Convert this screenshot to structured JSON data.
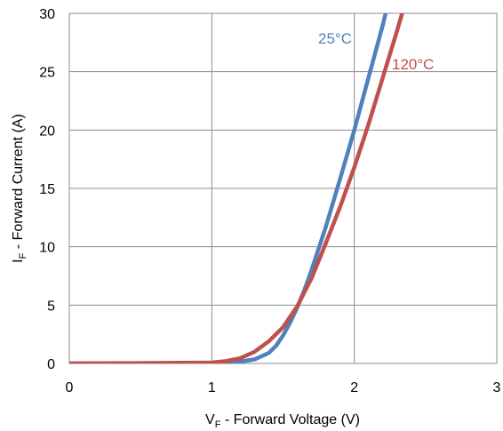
{
  "chart_data": {
    "type": "line",
    "title": "",
    "xlabel": {
      "main": "V",
      "sub": "F",
      "rest": " - Forward Voltage (V)"
    },
    "ylabel": {
      "main": "I",
      "sub": "F",
      "rest": " - Forward Current (A)"
    },
    "xlim": [
      0,
      3
    ],
    "ylim": [
      0,
      30
    ],
    "xticks": [
      "0",
      "1",
      "2",
      "3"
    ],
    "yticks": [
      "0",
      "5",
      "10",
      "15",
      "20",
      "25",
      "30"
    ],
    "grid": true,
    "series": [
      {
        "name": "25°C",
        "color": "#4f81bd",
        "x": [
          0,
          0.5,
          1.0,
          1.2,
          1.3,
          1.4,
          1.45,
          1.5,
          1.55,
          1.6,
          1.65,
          1.7,
          1.8,
          1.9,
          2.0,
          2.1,
          2.2,
          2.24
        ],
        "y": [
          0,
          0.02,
          0.05,
          0.15,
          0.35,
          0.9,
          1.5,
          2.4,
          3.5,
          4.8,
          6.3,
          8.0,
          11.7,
          15.8,
          20.0,
          24.5,
          29.0,
          31.0
        ]
      },
      {
        "name": "120°C",
        "color": "#c0504d",
        "x": [
          0,
          0.5,
          1.0,
          1.1,
          1.2,
          1.3,
          1.4,
          1.5,
          1.6,
          1.7,
          1.8,
          1.9,
          2.0,
          2.1,
          2.2,
          2.3,
          2.35
        ],
        "y": [
          0,
          0.03,
          0.08,
          0.2,
          0.45,
          1.0,
          1.9,
          3.1,
          4.9,
          7.3,
          10.3,
          13.4,
          16.8,
          20.5,
          24.5,
          28.5,
          30.6
        ]
      }
    ]
  }
}
